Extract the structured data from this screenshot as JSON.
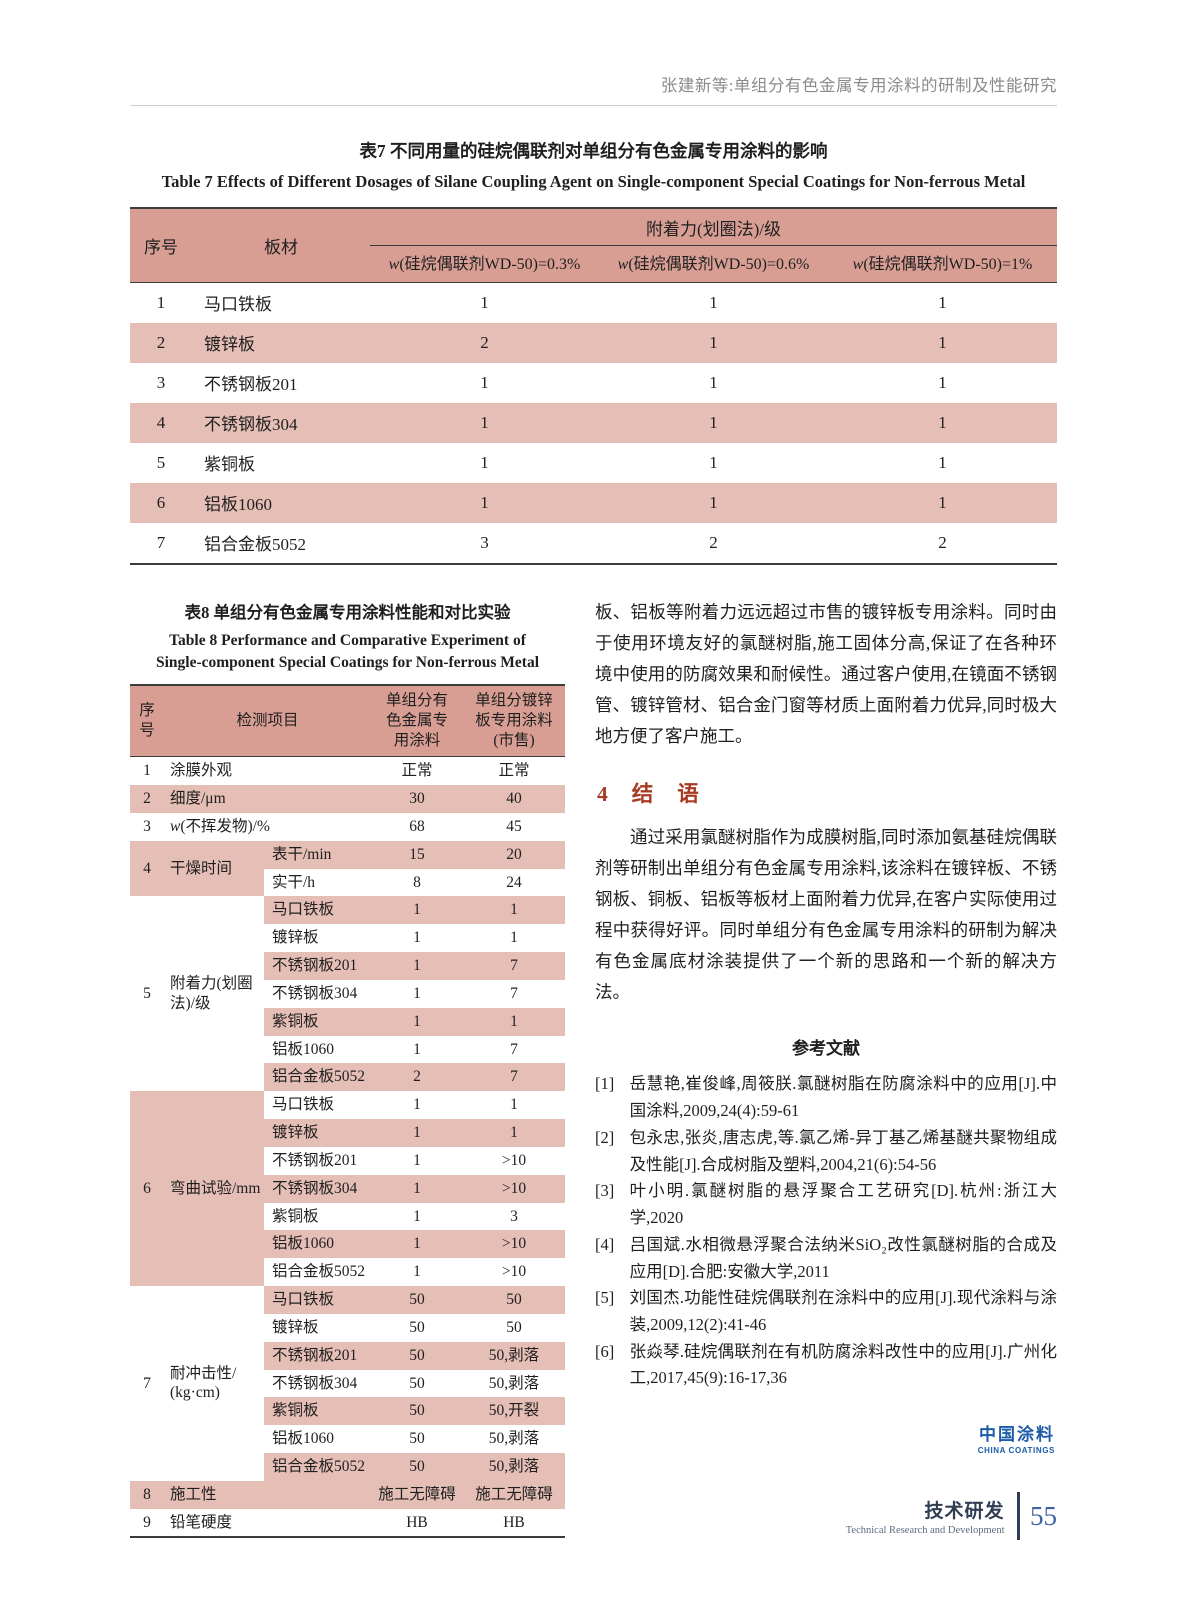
{
  "page_header": {
    "running_title": "张建新等:单组分有色金属专用涂料的研制及性能研究"
  },
  "table7": {
    "title_cn": "表7  不同用量的硅烷偶联剂对单组分有色金属专用涂料的影响",
    "title_en": "Table 7  Effects of Different Dosages of Silane Coupling Agent on Single-component Special Coatings for Non-ferrous Metal",
    "col_seq": "序号",
    "col_board": "板材",
    "group_header": "附着力(划圈法)/级",
    "sub_headers": [
      "w(硅烷偶联剂WD-50)=0.3%",
      "w(硅烷偶联剂WD-50)=0.6%",
      "w(硅烷偶联剂WD-50)=1%"
    ],
    "rows": [
      {
        "seq": "1",
        "board": "马口铁板",
        "values": [
          "1",
          "1",
          "1"
        ],
        "shaded": false
      },
      {
        "seq": "2",
        "board": "镀锌板",
        "values": [
          "2",
          "1",
          "1"
        ],
        "shaded": true
      },
      {
        "seq": "3",
        "board": "不锈钢板201",
        "values": [
          "1",
          "1",
          "1"
        ],
        "shaded": false
      },
      {
        "seq": "4",
        "board": "不锈钢板304",
        "values": [
          "1",
          "1",
          "1"
        ],
        "shaded": true
      },
      {
        "seq": "5",
        "board": "紫铜板",
        "values": [
          "1",
          "1",
          "1"
        ],
        "shaded": false
      },
      {
        "seq": "6",
        "board": "铝板1060",
        "values": [
          "1",
          "1",
          "1"
        ],
        "shaded": true
      },
      {
        "seq": "7",
        "board": "铝合金板5052",
        "values": [
          "3",
          "2",
          "2"
        ],
        "shaded": false
      }
    ]
  },
  "table8": {
    "title_cn": "表8  单组分有色金属专用涂料性能和对比实验",
    "title_en": "Table 8  Performance and Comparative Experiment of\nSingle-component Special Coatings for Non-ferrous Metal",
    "header": {
      "seq": "序\n号",
      "item": "检测项目",
      "col1": "单组分有\n色金属专\n用涂料",
      "col2": "单组分镀锌\n板专用涂料\n(市售)"
    },
    "rows": [
      {
        "seq": "1",
        "span": 1,
        "item": "涂膜外观",
        "v1": "正常",
        "v2": "正常",
        "shaded": false
      },
      {
        "seq": "2",
        "span": 1,
        "item": "细度/μm",
        "v1": "30",
        "v2": "40",
        "shaded": true
      },
      {
        "seq": "3",
        "span": 1,
        "item": "w(不挥发物)/%",
        "v1": "68",
        "v2": "45",
        "shaded": false
      },
      {
        "seq": "4",
        "span": 2,
        "item": "干燥时间",
        "labelShaded": true,
        "sub": "表干/min",
        "v1": "15",
        "v2": "20",
        "shaded": true
      },
      {
        "sub": "实干/h",
        "v1": "8",
        "v2": "24",
        "shaded": false
      },
      {
        "seq": "5",
        "span": 7,
        "item": "附着力(划圈法)/级",
        "labelShaded": false,
        "sub": "马口铁板",
        "v1": "1",
        "v2": "1",
        "shaded": true
      },
      {
        "sub": "镀锌板",
        "v1": "1",
        "v2": "1",
        "shaded": false
      },
      {
        "sub": "不锈钢板201",
        "v1": "1",
        "v2": "7",
        "shaded": true
      },
      {
        "sub": "不锈钢板304",
        "v1": "1",
        "v2": "7",
        "shaded": false
      },
      {
        "sub": "紫铜板",
        "v1": "1",
        "v2": "1",
        "shaded": true
      },
      {
        "sub": "铝板1060",
        "v1": "1",
        "v2": "7",
        "shaded": false
      },
      {
        "sub": "铝合金板5052",
        "v1": "2",
        "v2": "7",
        "shaded": true
      },
      {
        "seq": "6",
        "span": 7,
        "item": "弯曲试验/mm",
        "labelShaded": true,
        "sub": "马口铁板",
        "v1": "1",
        "v2": "1",
        "shaded": false
      },
      {
        "sub": "镀锌板",
        "v1": "1",
        "v2": "1",
        "shaded": true
      },
      {
        "sub": "不锈钢板201",
        "v1": "1",
        "v2": ">10",
        "shaded": false
      },
      {
        "sub": "不锈钢板304",
        "v1": "1",
        "v2": ">10",
        "shaded": true
      },
      {
        "sub": "紫铜板",
        "v1": "1",
        "v2": "3",
        "shaded": false
      },
      {
        "sub": "铝板1060",
        "v1": "1",
        "v2": ">10",
        "shaded": true
      },
      {
        "sub": "铝合金板5052",
        "v1": "1",
        "v2": ">10",
        "shaded": false
      },
      {
        "seq": "7",
        "span": 7,
        "item": "耐冲击性/\n(kg·cm)",
        "labelShaded": false,
        "sub": "马口铁板",
        "v1": "50",
        "v2": "50",
        "shaded": true
      },
      {
        "sub": "镀锌板",
        "v1": "50",
        "v2": "50",
        "shaded": false
      },
      {
        "sub": "不锈钢板201",
        "v1": "50",
        "v2": "50,剥落",
        "shaded": true
      },
      {
        "sub": "不锈钢板304",
        "v1": "50",
        "v2": "50,剥落",
        "shaded": false
      },
      {
        "sub": "紫铜板",
        "v1": "50",
        "v2": "50,开裂",
        "shaded": true
      },
      {
        "sub": "铝板1060",
        "v1": "50",
        "v2": "50,剥落",
        "shaded": false
      },
      {
        "sub": "铝合金板5052",
        "v1": "50",
        "v2": "50,剥落",
        "shaded": true
      },
      {
        "seq": "8",
        "span": 1,
        "item": "施工性",
        "v1": "施工无障碍",
        "v2": "施工无障碍",
        "shaded": true
      },
      {
        "seq": "9",
        "span": 1,
        "item": "铅笔硬度",
        "v1": "HB",
        "v2": "HB",
        "shaded": false
      }
    ]
  },
  "right_column": {
    "para1": "板、铝板等附着力远远超过市售的镀锌板专用涂料。同时由于使用环境友好的氯醚树脂,施工固体分高,保证了在各种环境中使用的防腐效果和耐候性。通过客户使用,在镜面不锈钢管、镀锌管材、铝合金门窗等材质上面附着力优异,同时极大地方便了客户施工。",
    "section_heading": {
      "number": "4",
      "title": "结语"
    },
    "para2": "通过采用氯醚树脂作为成膜树脂,同时添加氨基硅烷偶联剂等研制出单组分有色金属专用涂料,该涂料在镀锌板、不锈钢板、铜板、铝板等板材上面附着力优异,在客户实际使用过程中获得好评。同时单组分有色金属专用涂料的研制为解决有色金属底材涂装提供了一个新的思路和一个新的解决方法。",
    "references_heading": "参考文献",
    "references": [
      {
        "label": "[1]",
        "text": "岳慧艳,崔俊峰,周筱朕.氯醚树脂在防腐涂料中的应用[J].中国涂料,2009,24(4):59-61"
      },
      {
        "label": "[2]",
        "text": "包永忠,张炎,唐志虎,等.氯乙烯-异丁基乙烯基醚共聚物组成及性能[J].合成树脂及塑料,2004,21(6):54-56"
      },
      {
        "label": "[3]",
        "text": "叶小明.氯醚树脂的悬浮聚合工艺研究[D].杭州:浙江大学,2020"
      },
      {
        "label": "[4]",
        "text": "吕国斌.水相微悬浮聚合法纳米SiO₂改性氯醚树脂的合成及应用[D].合肥:安徽大学,2011"
      },
      {
        "label": "[5]",
        "text": "刘国杰.功能性硅烷偶联剂在涂料中的应用[J].现代涂料与涂装,2009,12(2):41-46"
      },
      {
        "label": "[6]",
        "text": "张焱琴.硅烷偶联剂在有机防腐涂料改性中的应用[J].广州化工,2017,45(9):16-17,36"
      }
    ]
  },
  "logo": {
    "cn": "中国涂料",
    "en": "CHINA COATINGS"
  },
  "footer": {
    "section_cn": "技术研发",
    "section_en": "Technical Research and Development",
    "page_number": "55"
  },
  "colors": {
    "table_header_pink": "#d89e94",
    "table_stripe_pink": "#e5beb6",
    "section_heading_red": "#a83a24",
    "logo_blue": "#1c5ca8",
    "page_number_blue": "#3f62a0",
    "footer_dark": "#2f3d52"
  }
}
